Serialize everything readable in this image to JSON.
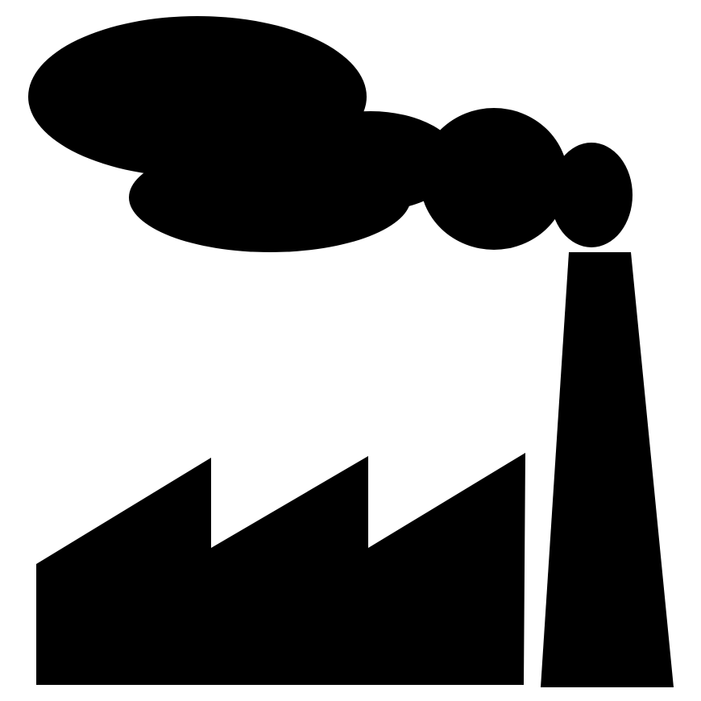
{
  "icon": "factory-pollution-icon",
  "parts": {
    "smoke": "smoke-cloud-icon",
    "chimney": "chimney-icon",
    "building": "factory-building-icon"
  },
  "colors": {
    "background": "#ffffff",
    "foreground": "#000000"
  }
}
